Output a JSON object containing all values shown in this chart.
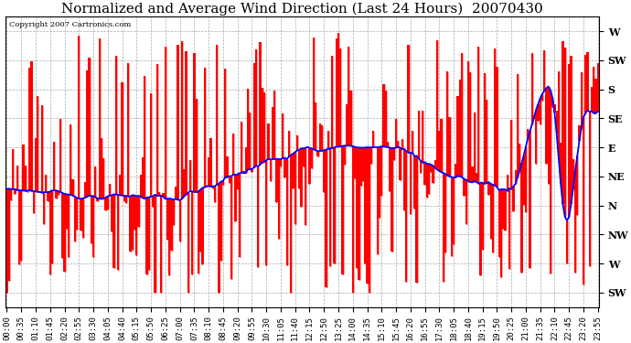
{
  "title": "Normalized and Average Wind Direction (Last 24 Hours)  20070430",
  "copyright_text": "Copyright 2007 Cartronics.com",
  "background_color": "#ffffff",
  "plot_bg_color": "#ffffff",
  "grid_color": "#aaaaaa",
  "bar_color": "#ff0000",
  "line_color": "#0000ff",
  "y_labels_top_to_bottom": [
    "W",
    "SW",
    "S",
    "SE",
    "E",
    "NE",
    "N",
    "NW",
    "W",
    "SW"
  ],
  "y_tick_values": [
    9,
    8,
    7,
    6,
    5,
    4,
    3,
    2,
    1,
    0
  ],
  "ylim": [
    -0.5,
    9.5
  ],
  "title_fontsize": 11,
  "label_fontsize": 8,
  "tick_fontsize": 6.5,
  "copyright_fontsize": 6
}
